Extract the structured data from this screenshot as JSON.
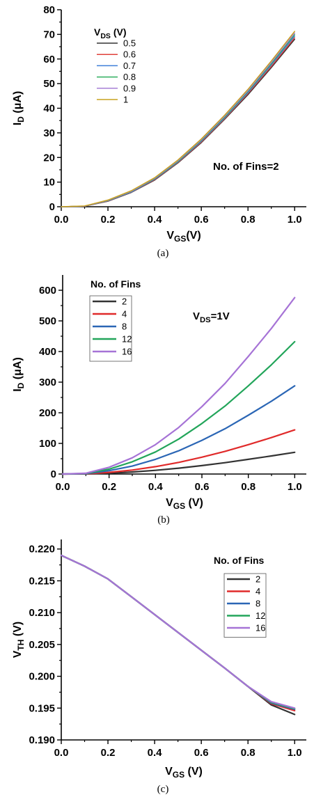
{
  "chart_data": [
    {
      "type": "line",
      "xlabel": "V_GS(V)",
      "ylabel": "I_D (μA)",
      "caption": "(a)",
      "xlim": [
        0.0,
        1.05
      ],
      "ylim": [
        0,
        80
      ],
      "xticks": [
        "0.0",
        "0.2",
        "0.4",
        "0.6",
        "0.8",
        "1.0"
      ],
      "yticks": [
        "0",
        "10",
        "20",
        "30",
        "40",
        "50",
        "60",
        "70",
        "80"
      ],
      "legend_title": "V_DS (V)",
      "legend_position": "top-left",
      "annotation": "No. of Fins=2",
      "x": [
        0.0,
        0.1,
        0.2,
        0.3,
        0.4,
        0.5,
        0.6,
        0.7,
        0.8,
        0.9,
        1.0
      ],
      "series": [
        {
          "name": "0.5",
          "color": "#333333",
          "values": [
            0,
            0.2,
            2.2,
            5.8,
            10.8,
            17.8,
            26.0,
            35.5,
            45.5,
            56.5,
            68.0
          ]
        },
        {
          "name": "0.6",
          "color": "#e0403a",
          "values": [
            0,
            0.2,
            2.3,
            5.9,
            11.0,
            18.0,
            26.3,
            35.8,
            46.0,
            57.0,
            68.6
          ]
        },
        {
          "name": "0.7",
          "color": "#3f7fd9",
          "values": [
            0,
            0.2,
            2.4,
            6.0,
            11.2,
            18.2,
            26.6,
            36.1,
            46.4,
            57.6,
            69.3
          ]
        },
        {
          "name": "0.8",
          "color": "#2fae5e",
          "values": [
            0,
            0.2,
            2.5,
            6.2,
            11.4,
            18.4,
            26.9,
            36.4,
            46.8,
            58.1,
            69.9
          ]
        },
        {
          "name": "0.9",
          "color": "#a77fd6",
          "values": [
            0,
            0.2,
            2.6,
            6.3,
            11.6,
            18.7,
            27.2,
            36.8,
            47.2,
            58.6,
            70.5
          ]
        },
        {
          "name": "1",
          "color": "#c9a21e",
          "values": [
            0,
            0.3,
            2.7,
            6.5,
            11.8,
            19.0,
            27.5,
            37.2,
            47.7,
            59.2,
            71.2
          ]
        }
      ]
    },
    {
      "type": "line",
      "xlabel": "V_GS (V)",
      "ylabel": "I_D (μA)",
      "caption": "(b)",
      "xlim": [
        0.0,
        1.05
      ],
      "ylim": [
        0,
        650
      ],
      "xticks": [
        "0.0",
        "0.2",
        "0.4",
        "0.6",
        "0.8",
        "1.0"
      ],
      "yticks": [
        "0",
        "100",
        "200",
        "300",
        "400",
        "500",
        "600"
      ],
      "legend_title": "No. of Fins",
      "legend_position": "top-left",
      "annotation": "V_DS=1V",
      "x": [
        0.0,
        0.1,
        0.2,
        0.3,
        0.4,
        0.5,
        0.6,
        0.7,
        0.8,
        0.9,
        1.0
      ],
      "series": [
        {
          "name": "2",
          "color": "#333333",
          "values": [
            0,
            0.3,
            2.7,
            6.5,
            12,
            19,
            27.5,
            37,
            48,
            59,
            71
          ]
        },
        {
          "name": "4",
          "color": "#e02a2a",
          "values": [
            0,
            0.6,
            5.5,
            13,
            24,
            38,
            55,
            74,
            96,
            119,
            144
          ]
        },
        {
          "name": "8",
          "color": "#2b66b5",
          "values": [
            0,
            1.2,
            11,
            26,
            48,
            76,
            110,
            148,
            192,
            238,
            288
          ]
        },
        {
          "name": "12",
          "color": "#22a55a",
          "values": [
            0,
            1.8,
            16,
            40,
            72,
            114,
            165,
            222,
            288,
            357,
            432
          ]
        },
        {
          "name": "16",
          "color": "#a673d6",
          "values": [
            0,
            2.4,
            22,
            53,
            96,
            152,
            220,
            296,
            384,
            476,
            576
          ]
        }
      ]
    },
    {
      "type": "line",
      "xlabel": "V_GS (V)",
      "ylabel": "V_TH (V)",
      "caption": "(c)",
      "xlim": [
        0.0,
        1.05
      ],
      "ylim": [
        0.19,
        0.2215
      ],
      "xticks": [
        "0.0",
        "0.2",
        "0.4",
        "0.6",
        "0.8",
        "1.0"
      ],
      "yticks": [
        "0.190",
        "0.195",
        "0.200",
        "0.205",
        "0.210",
        "0.215",
        "0.220"
      ],
      "legend_title": "No. of Fins",
      "legend_position": "top-right",
      "x": [
        0.0,
        0.1,
        0.2,
        0.3,
        0.4,
        0.5,
        0.6,
        0.7,
        0.8,
        0.9,
        1.0
      ],
      "series": [
        {
          "name": "2",
          "color": "#333333",
          "values": [
            0.219,
            0.2173,
            0.2153,
            0.2125,
            0.2097,
            0.2069,
            0.2041,
            0.2013,
            0.1984,
            0.1955,
            0.194
          ]
        },
        {
          "name": "4",
          "color": "#e02a2a",
          "values": [
            0.219,
            0.2173,
            0.2153,
            0.2125,
            0.2097,
            0.2069,
            0.2041,
            0.2013,
            0.1984,
            0.1957,
            0.1946
          ]
        },
        {
          "name": "8",
          "color": "#2b66b5",
          "values": [
            0.219,
            0.2173,
            0.2153,
            0.2125,
            0.2097,
            0.2069,
            0.2041,
            0.2013,
            0.1984,
            0.1958,
            0.1948
          ]
        },
        {
          "name": "12",
          "color": "#22a55a",
          "values": [
            0.219,
            0.2173,
            0.2153,
            0.2125,
            0.2097,
            0.2069,
            0.2041,
            0.2013,
            0.1984,
            0.1959,
            0.1949
          ]
        },
        {
          "name": "16",
          "color": "#a673d6",
          "values": [
            0.219,
            0.2173,
            0.2153,
            0.2125,
            0.2097,
            0.2069,
            0.2041,
            0.2013,
            0.1984,
            0.196,
            0.195
          ]
        }
      ]
    }
  ]
}
